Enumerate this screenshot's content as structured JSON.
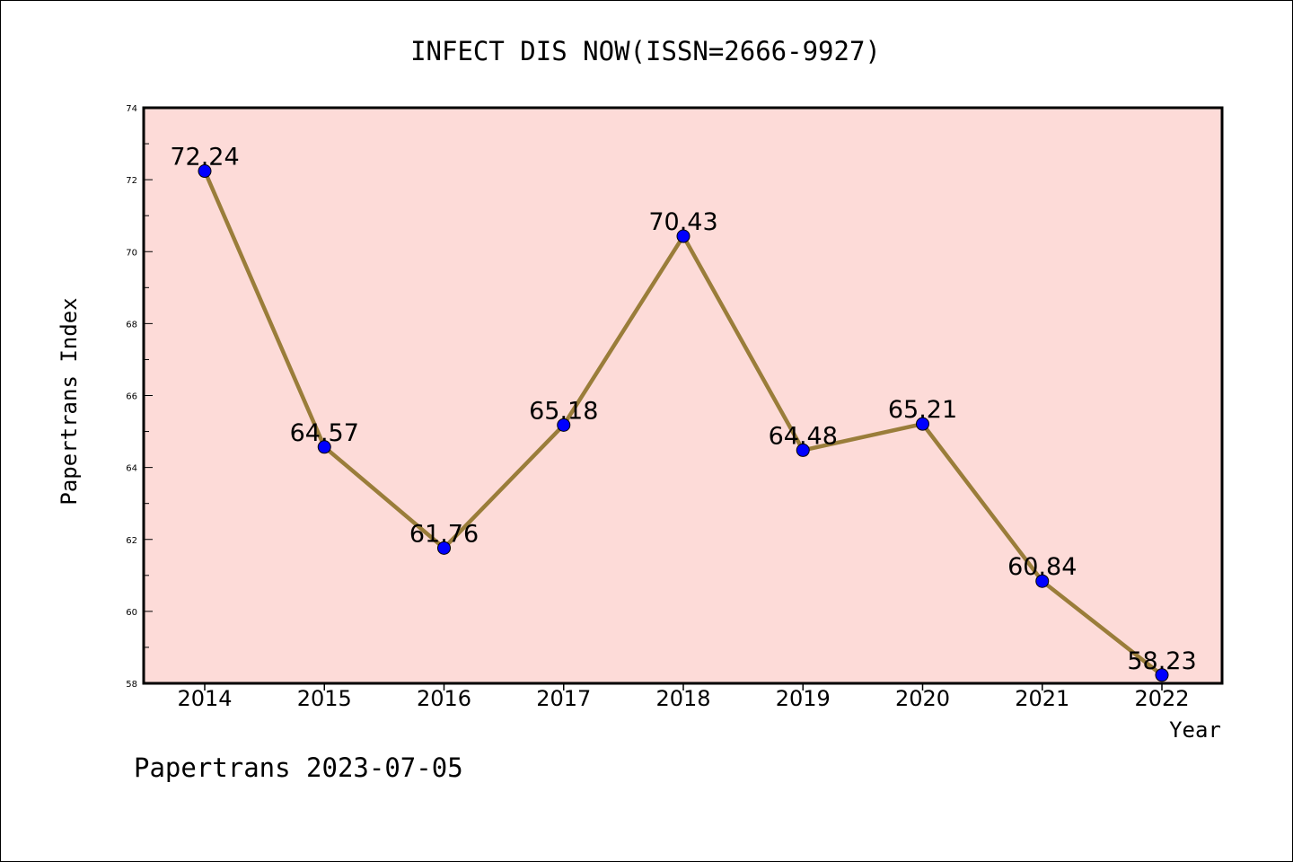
{
  "chart_data": {
    "type": "line",
    "title": "INFECT DIS NOW(ISSN=2666-9927)",
    "xlabel": "Year",
    "ylabel": "Papertrans Index",
    "categories": [
      "2014",
      "2015",
      "2016",
      "2017",
      "2018",
      "2019",
      "2020",
      "2021",
      "2022"
    ],
    "series": [
      {
        "values": [
          72.24,
          64.57,
          61.76,
          65.18,
          70.43,
          64.48,
          65.21,
          60.84,
          58.23
        ]
      }
    ],
    "data_labels": [
      "72.24",
      "64.57",
      "61.76",
      "65.18",
      "70.43",
      "64.48",
      "65.21",
      "60.84",
      "58.23"
    ],
    "ylim": [
      58,
      74
    ],
    "yticks": [
      "58",
      "60",
      "62",
      "64",
      "66",
      "68",
      "70",
      "72",
      "74"
    ],
    "grid": false,
    "colors": {
      "background": "#fddbd8",
      "line": "#9a7d3a",
      "marker": "#0000ff"
    }
  },
  "footer": "Papertrans 2023-07-05"
}
